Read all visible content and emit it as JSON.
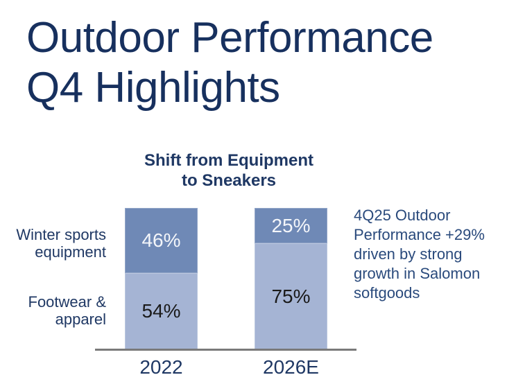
{
  "slide": {
    "title_lines": [
      "Outdoor Performance",
      "Q4 Highlights"
    ]
  },
  "chart_data": {
    "type": "bar",
    "stacked": true,
    "title": "Shift from Equipment to Sneakers",
    "title_lines": [
      "Shift from Equipment",
      "to Sneakers"
    ],
    "categories": [
      "2022",
      "2026E"
    ],
    "series": [
      {
        "name": "Winter sports equipment",
        "label_lines": [
          "Winter sports",
          "equipment"
        ],
        "values": [
          46,
          25
        ],
        "color": "#6f89b6",
        "label_color": "#f4f6fa"
      },
      {
        "name": "Footwear & apparel",
        "label_lines": [
          "Footwear &",
          "apparel"
        ],
        "values": [
          54,
          75
        ],
        "color": "#a5b4d4",
        "label_color": "#1a1a1a"
      }
    ],
    "unit": "%",
    "ylim": [
      0,
      100
    ],
    "grid": false,
    "legend_position": "left-row-labels",
    "annotation": "4Q25 Outdoor Performance +29% driven by strong growth in Salomon softgoods"
  },
  "annotation": {
    "lines": [
      "4Q25 Outdoor",
      "Performance +29%",
      "driven by strong",
      "growth in Salomon",
      "softgoods"
    ]
  },
  "colors": {
    "title_text": "#17305e",
    "chart_text": "#1f3864",
    "annotation_text": "#2a4a7c",
    "segment_top": "#6f89b6",
    "segment_bottom": "#a5b4d4",
    "axis": "#7a7a7a",
    "background": "#ffffff"
  }
}
